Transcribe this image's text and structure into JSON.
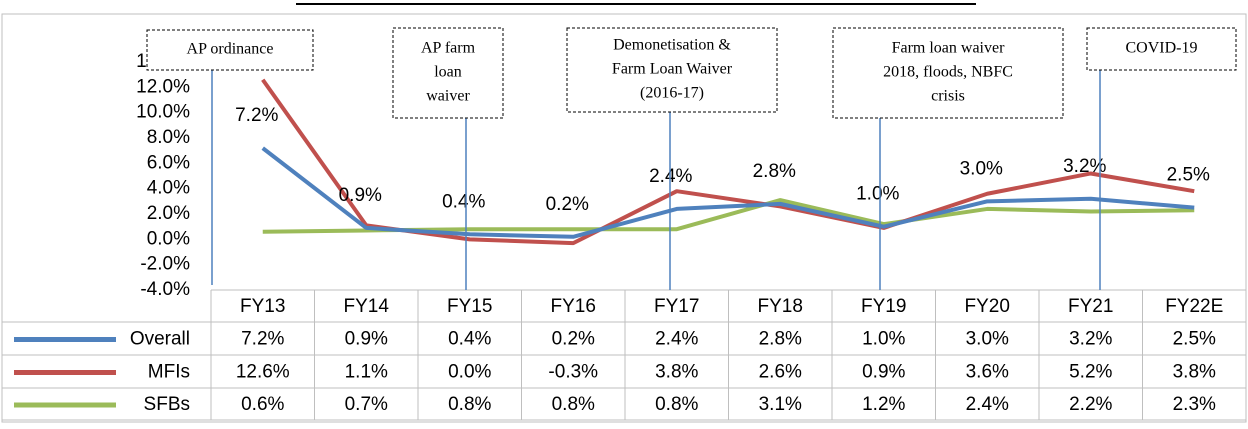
{
  "chart_data": {
    "type": "line",
    "categories": [
      "FY13",
      "FY14",
      "FY15",
      "FY16",
      "FY17",
      "FY18",
      "FY19",
      "FY20",
      "FY21",
      "FY22E"
    ],
    "series": [
      {
        "name": "Overall",
        "color": "#4f81bd",
        "values": [
          7.2,
          0.9,
          0.4,
          0.2,
          2.4,
          2.8,
          1.0,
          3.0,
          3.2,
          2.5
        ],
        "value_labels": [
          "7.2%",
          "0.9%",
          "0.4%",
          "0.2%",
          "2.4%",
          "2.8%",
          "1.0%",
          "3.0%",
          "3.2%",
          "2.5%"
        ]
      },
      {
        "name": "MFIs",
        "color": "#c0504d",
        "values": [
          12.6,
          1.1,
          0.0,
          -0.3,
          3.8,
          2.6,
          0.9,
          3.6,
          5.2,
          3.8
        ],
        "value_labels": [
          "12.6%",
          "1.1%",
          "0.0%",
          "-0.3%",
          "3.8%",
          "2.6%",
          "0.9%",
          "3.6%",
          "5.2%",
          "3.8%"
        ]
      },
      {
        "name": "SFBs",
        "color": "#9bbb59",
        "values": [
          0.6,
          0.7,
          0.8,
          0.8,
          0.8,
          3.1,
          1.2,
          2.4,
          2.2,
          2.3
        ],
        "value_labels": [
          "0.6%",
          "0.7%",
          "0.8%",
          "0.8%",
          "0.8%",
          "3.1%",
          "1.2%",
          "2.4%",
          "2.2%",
          "2.3%"
        ]
      }
    ],
    "ylim": [
      -4,
      14
    ],
    "yticks": [
      {
        "value": -4,
        "label": "-4.0%"
      },
      {
        "value": -2,
        "label": "-2.0%"
      },
      {
        "value": 0,
        "label": "0.0%"
      },
      {
        "value": 2,
        "label": "2.0%"
      },
      {
        "value": 4,
        "label": "4.0%"
      },
      {
        "value": 6,
        "label": "6.0%"
      },
      {
        "value": 8,
        "label": "8.0%"
      },
      {
        "value": 10,
        "label": "10.0%"
      },
      {
        "value": 12,
        "label": "12.0%"
      },
      {
        "value": 14,
        "label": "14.0%"
      }
    ],
    "annotations": [
      {
        "lines": [
          "AP ordinance"
        ]
      },
      {
        "lines": [
          "AP farm",
          "loan",
          "waiver"
        ]
      },
      {
        "lines": [
          "Demonetisation &",
          "Farm Loan Waiver",
          "(2016-17)"
        ]
      },
      {
        "lines": [
          "Farm loan waiver",
          "2018, floods, NBFC",
          "crisis"
        ]
      },
      {
        "lines": [
          "COVID-19"
        ]
      }
    ]
  }
}
